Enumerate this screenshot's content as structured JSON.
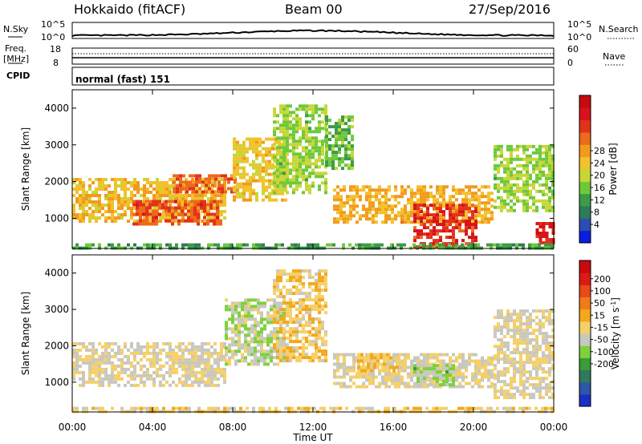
{
  "header": {
    "station": "Hokkaido (fitACF)",
    "beam": "Beam 00",
    "date": "27/Sep/2016"
  },
  "top_panels": {
    "nsky": {
      "label": "N.Sky",
      "ytick_top": "10^5",
      "ytick_bottom": "10^0",
      "right_label": "N.Search",
      "right_tick_top": "10^5",
      "right_tick_bottom": "10^0"
    },
    "freq": {
      "label_line1": "Freq.",
      "label_line2": "[MHz]",
      "ytick_top": "18",
      "ytick_bottom": "8",
      "right_label": "Nave",
      "right_tick_top": "60",
      "right_tick_bottom": "0"
    },
    "cpid": {
      "label": "CPID",
      "value": "normal (fast) 151"
    }
  },
  "chart_data": [
    {
      "type": "heatmap",
      "name": "power",
      "xlabel": "",
      "ylabel": "Slant Range [km]",
      "xlim": [
        0,
        24
      ],
      "ylim": [
        180,
        4500
      ],
      "yticks": [
        "1000",
        "2000",
        "3000",
        "4000"
      ],
      "colorbar": {
        "label": "Power [dB]",
        "ticks": [
          "4",
          "8",
          "12",
          "16",
          "20",
          "24",
          "28"
        ],
        "colors": [
          "#0a1ee0",
          "#2a4fb0",
          "#2f7a5a",
          "#3e9a48",
          "#6ec93a",
          "#c8d638",
          "#f2c22a",
          "#f39a1e",
          "#ec6a1c",
          "#e3321a",
          "#d8121a",
          "#c80a10"
        ],
        "range": [
          0,
          32
        ]
      },
      "regions": [
        {
          "t0": 0.0,
          "t1": 7.6,
          "r0": 900,
          "r1": 2100,
          "level": 18
        },
        {
          "t0": 3.0,
          "t1": 7.4,
          "r0": 850,
          "r1": 1500,
          "level": 25
        },
        {
          "t0": 5.0,
          "t1": 8.2,
          "r0": 1700,
          "r1": 2200,
          "level": 24
        },
        {
          "t0": 8.0,
          "t1": 10.6,
          "r0": 1500,
          "r1": 3200,
          "level": 17
        },
        {
          "t0": 10.0,
          "t1": 12.6,
          "r0": 1700,
          "r1": 4100,
          "level": 13
        },
        {
          "t0": 12.6,
          "t1": 14.0,
          "r0": 2400,
          "r1": 3800,
          "level": 11
        },
        {
          "t0": 13.0,
          "t1": 21.0,
          "r0": 900,
          "r1": 1900,
          "level": 19
        },
        {
          "t0": 17.0,
          "t1": 20.2,
          "r0": 200,
          "r1": 1400,
          "level": 27
        },
        {
          "t0": 21.0,
          "t1": 24.0,
          "r0": 1200,
          "r1": 3000,
          "level": 13
        },
        {
          "t0": 23.1,
          "t1": 24.0,
          "r0": 300,
          "r1": 900,
          "level": 28
        },
        {
          "t0": 0.0,
          "t1": 24.0,
          "r0": 180,
          "r1": 320,
          "level": 9
        }
      ]
    },
    {
      "type": "heatmap",
      "name": "velocity",
      "xlabel": "Time UT",
      "ylabel": "Slant Range [km]",
      "xlim": [
        0,
        24
      ],
      "ylim": [
        180,
        4500
      ],
      "xticks": [
        "00:00",
        "04:00",
        "08:00",
        "12:00",
        "16:00",
        "20:00",
        "00:00"
      ],
      "yticks": [
        "1000",
        "2000",
        "3000",
        "4000"
      ],
      "colorbar": {
        "label": "Velocity [m s^-1]",
        "ticks": [
          "200",
          "100",
          "50",
          "15",
          "-15",
          "-50",
          "-100",
          "-200"
        ],
        "colors": [
          "#1a2fc8",
          "#2d57a8",
          "#2f7a5a",
          "#3b9a3a",
          "#7ed13c",
          "#c8c8c0",
          "#f5d06a",
          "#f3a81e",
          "#ef7c1a",
          "#e84a1a",
          "#dc1a18",
          "#c80a10"
        ],
        "range": [
          -250,
          250
        ]
      },
      "regions": [
        {
          "t0": 0.0,
          "t1": 7.6,
          "r0": 900,
          "r1": 2100,
          "level": 0
        },
        {
          "t0": 7.6,
          "t1": 10.5,
          "r0": 1500,
          "r1": 3300,
          "level": -30
        },
        {
          "t0": 10.0,
          "t1": 12.6,
          "r0": 1600,
          "r1": 4100,
          "level": 30
        },
        {
          "t0": 13.0,
          "t1": 21.0,
          "r0": 900,
          "r1": 1800,
          "level": 0
        },
        {
          "t0": 17.0,
          "t1": 19.0,
          "r0": 900,
          "r1": 1500,
          "level": -50
        },
        {
          "t0": 14.2,
          "t1": 16.5,
          "r0": 1300,
          "r1": 1800,
          "level": 40
        },
        {
          "t0": 21.0,
          "t1": 24.0,
          "r0": 600,
          "r1": 3000,
          "level": 0
        },
        {
          "t0": 0.0,
          "t1": 24.0,
          "r0": 180,
          "r1": 320,
          "level": 20
        }
      ]
    }
  ]
}
